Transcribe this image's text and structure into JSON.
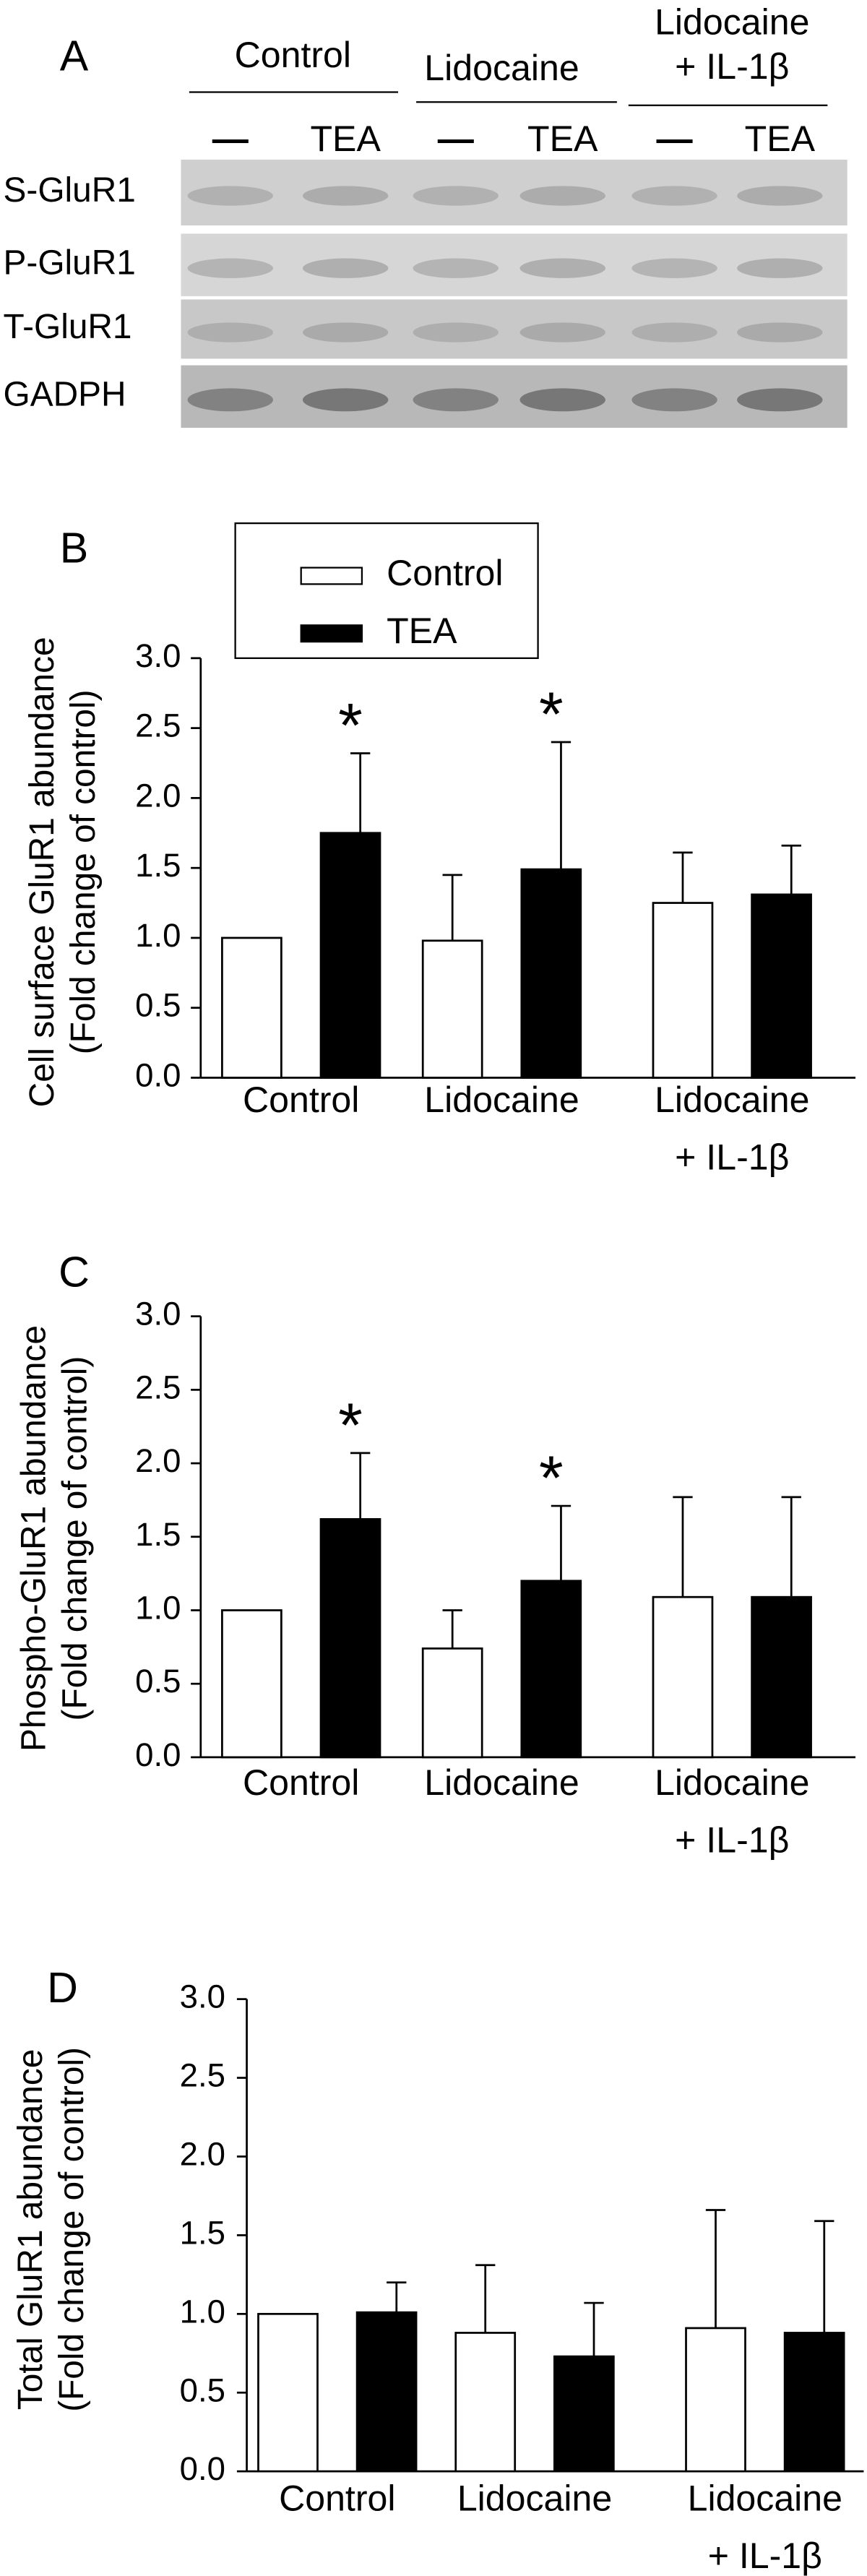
{
  "blot": {
    "panel": "A",
    "groups": [
      [
        "Control"
      ],
      [
        "Lidocaine"
      ],
      [
        "Lidocaine",
        "+ IL-1β"
      ]
    ],
    "lanes": [
      "—",
      "TEA",
      "—",
      "TEA",
      "—",
      "TEA"
    ],
    "rows": [
      "S-GluR1",
      "P-GluR1",
      "T-GluR1",
      "GADPH"
    ]
  },
  "chart_data": [
    {
      "type": "bar",
      "panel": "B",
      "ylabel": [
        "Cell surface GluR1 abundance",
        "(Fold change of control)"
      ],
      "categories": [
        [
          "Control"
        ],
        [
          "Lidocaine"
        ],
        [
          "Lidocaine",
          "+ IL-1β"
        ]
      ],
      "series": [
        {
          "name": "Control",
          "color": "#ffffff",
          "values": [
            1.0,
            0.98,
            1.25
          ],
          "errors": [
            0,
            0.47,
            0.36
          ]
        },
        {
          "name": "TEA",
          "color": "#000000",
          "values": [
            1.75,
            1.49,
            1.31
          ],
          "errors": [
            0.57,
            0.91,
            0.35
          ],
          "annotations": [
            "*",
            "*",
            null
          ]
        }
      ],
      "ylim": [
        0,
        3
      ],
      "yticks": [
        {
          "value": 0,
          "label": "0.0"
        },
        0.5,
        {
          "value": 1,
          "label": "1.0"
        },
        1.5,
        {
          "value": 2,
          "label": "2.0"
        },
        2.5,
        {
          "value": 3,
          "label": "3.0"
        }
      ],
      "legend": "upper left"
    },
    {
      "type": "bar",
      "panel": "C",
      "ylabel": [
        "Phospho-GluR1 abundance",
        "(Fold change of control)"
      ],
      "categories": [
        [
          "Control"
        ],
        [
          "Lidocaine"
        ],
        [
          "Lidocaine",
          "+ IL-1β"
        ]
      ],
      "series": [
        {
          "color": "#ffffff",
          "values": [
            1.0,
            0.74,
            1.09
          ],
          "errors": [
            0,
            0.26,
            0.68
          ]
        },
        {
          "color": "#000000",
          "values": [
            1.62,
            1.2,
            1.09
          ],
          "errors": [
            0.45,
            0.51,
            0.68
          ],
          "annotations": [
            "*",
            "*",
            null
          ]
        }
      ],
      "ylim": [
        0,
        3
      ],
      "yticks": [
        {
          "value": 0,
          "label": "0.0"
        },
        0.5,
        {
          "value": 1,
          "label": "1.0"
        },
        1.5,
        {
          "value": 2,
          "label": "2.0"
        },
        2.5,
        {
          "value": 3,
          "label": "3.0"
        }
      ]
    },
    {
      "type": "bar",
      "panel": "D",
      "ylabel": [
        "Total GluR1 abundance",
        "(Fold change of control)"
      ],
      "categories": [
        [
          "Control"
        ],
        [
          "Lidocaine"
        ],
        [
          "Lidocaine",
          "+ IL-1β"
        ]
      ],
      "series": [
        {
          "color": "#ffffff",
          "values": [
            1.0,
            0.88,
            0.91
          ],
          "errors": [
            0,
            0.43,
            0.75
          ]
        },
        {
          "color": "#000000",
          "values": [
            1.01,
            0.73,
            0.88
          ],
          "errors": [
            0.19,
            0.34,
            0.71
          ]
        }
      ],
      "ylim": [
        0,
        3
      ],
      "yticks": [
        {
          "value": 0,
          "label": "0.0"
        },
        0.5,
        {
          "value": 1,
          "label": "1.0"
        },
        1.5,
        {
          "value": 2,
          "label": "2.0"
        },
        2.5,
        {
          "value": 3,
          "label": "3.0"
        }
      ]
    }
  ]
}
